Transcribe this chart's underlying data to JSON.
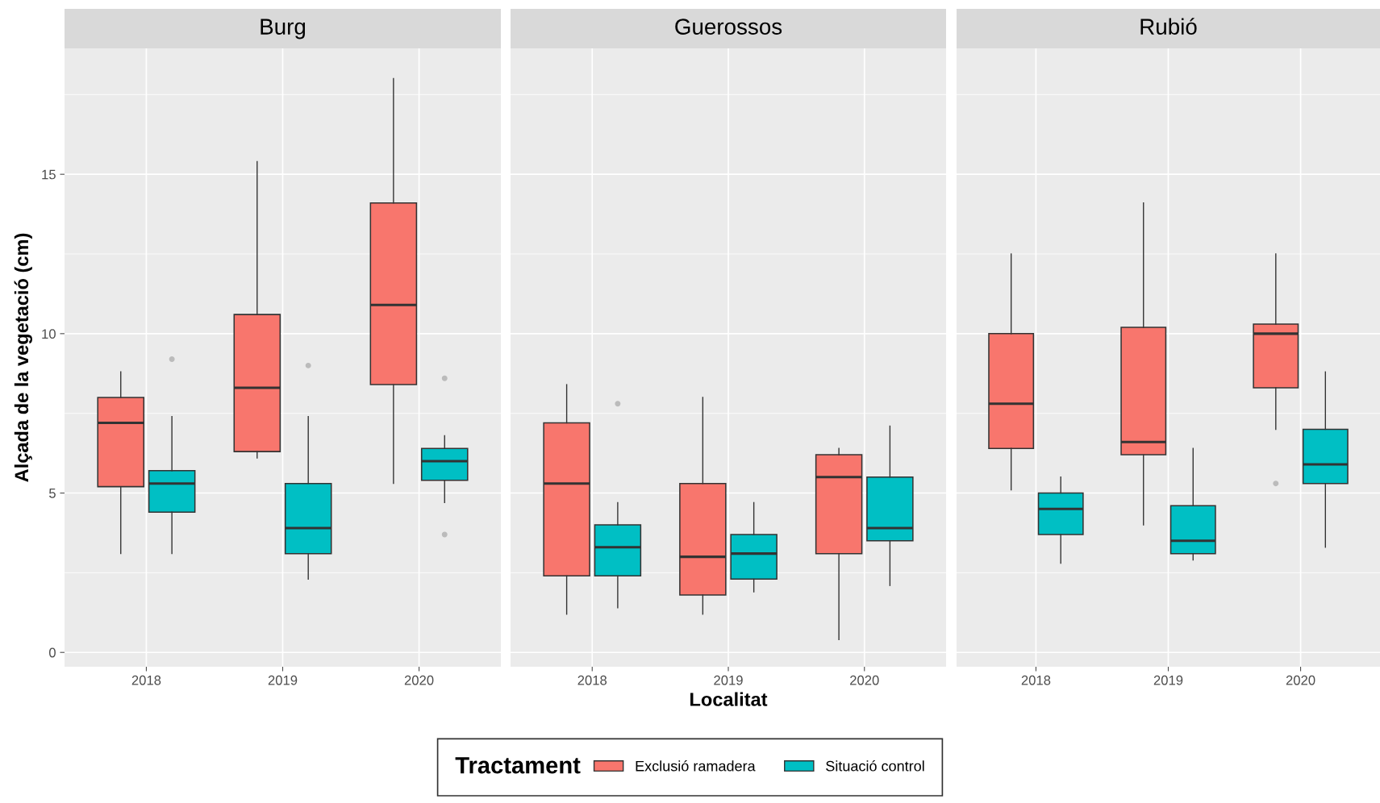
{
  "chart_data": [
    {
      "type": "box",
      "title": "Burg",
      "ylabel": "Alçada de la vegetació (cm)",
      "categories": [
        "2018",
        "2019",
        "2020"
      ],
      "ylim": [
        -0.45,
        18.95
      ],
      "yticks": [
        0,
        5,
        10,
        15
      ],
      "grid": true,
      "legend": "bottom",
      "legend_title": "Tractament",
      "series": [
        {
          "name": "Exclusió ramadera",
          "color": "#f8766d",
          "boxes": [
            {
              "low": 3.1,
              "q1": 5.2,
              "median": 7.2,
              "q3": 8.0,
              "high": 8.8
            },
            {
              "low": 6.1,
              "q1": 6.3,
              "median": 8.3,
              "q3": 10.6,
              "high": 15.4
            },
            {
              "low": 5.3,
              "q1": 8.4,
              "median": 10.9,
              "q3": 14.1,
              "high": 18.0
            }
          ]
        },
        {
          "name": "Situació control",
          "color": "#00bfc4",
          "boxes": [
            {
              "low": 3.1,
              "q1": 4.4,
              "median": 5.3,
              "q3": 5.7,
              "high": 7.4,
              "outliers": [
                9.2
              ]
            },
            {
              "low": 2.3,
              "q1": 3.1,
              "median": 3.9,
              "q3": 5.3,
              "high": 7.4,
              "outliers": [
                9.0
              ]
            },
            {
              "low": 4.7,
              "q1": 5.4,
              "median": 6.0,
              "q3": 6.4,
              "high": 6.8,
              "outliers": [
                8.6,
                3.7
              ]
            }
          ]
        }
      ]
    },
    {
      "type": "box",
      "title": "Guerossos",
      "xlabel": "Localitat",
      "categories": [
        "2018",
        "2019",
        "2020"
      ],
      "ylim": [
        -0.45,
        18.95
      ],
      "yticks": [
        0,
        5,
        10,
        15
      ],
      "grid": true,
      "tick_labels": "x",
      "series": [
        {
          "color": "#f8766d",
          "boxes": [
            {
              "low": 1.2,
              "q1": 2.4,
              "median": 5.3,
              "q3": 7.2,
              "high": 8.4
            },
            {
              "low": 1.2,
              "q1": 1.8,
              "median": 3.0,
              "q3": 5.3,
              "high": 8.0
            },
            {
              "low": 0.4,
              "q1": 3.1,
              "median": 5.5,
              "q3": 6.2,
              "high": 6.4
            }
          ]
        },
        {
          "color": "#00bfc4",
          "boxes": [
            {
              "low": 1.4,
              "q1": 2.4,
              "median": 3.3,
              "q3": 4.0,
              "high": 4.7,
              "outliers": [
                7.8
              ]
            },
            {
              "low": 1.9,
              "q1": 2.3,
              "median": 3.1,
              "q3": 3.7,
              "high": 4.7
            },
            {
              "low": 2.1,
              "q1": 3.5,
              "median": 3.9,
              "q3": 5.5,
              "high": 7.1
            }
          ]
        }
      ]
    },
    {
      "type": "box",
      "title": "Rubió",
      "categories": [
        "2018",
        "2019",
        "2020"
      ],
      "ylim": [
        -0.45,
        18.95
      ],
      "yticks": [
        0,
        5,
        10,
        15
      ],
      "grid": true,
      "tick_labels": "x",
      "series": [
        {
          "color": "#f8766d",
          "boxes": [
            {
              "low": 5.1,
              "q1": 6.4,
              "median": 7.8,
              "q3": 10.0,
              "high": 12.5
            },
            {
              "low": 4.0,
              "q1": 6.2,
              "median": 6.6,
              "q3": 10.2,
              "high": 14.1
            },
            {
              "low": 7.0,
              "q1": 8.3,
              "median": 10.0,
              "q3": 10.3,
              "high": 12.5,
              "outliers": [
                5.3
              ]
            }
          ]
        },
        {
          "color": "#00bfc4",
          "boxes": [
            {
              "low": 2.8,
              "q1": 3.7,
              "median": 4.5,
              "q3": 5.0,
              "high": 5.5
            },
            {
              "low": 2.9,
              "q1": 3.1,
              "median": 3.5,
              "q3": 4.6,
              "high": 6.4
            },
            {
              "low": 3.3,
              "q1": 5.3,
              "median": 5.9,
              "q3": 7.0,
              "high": 8.8
            }
          ]
        }
      ]
    }
  ]
}
